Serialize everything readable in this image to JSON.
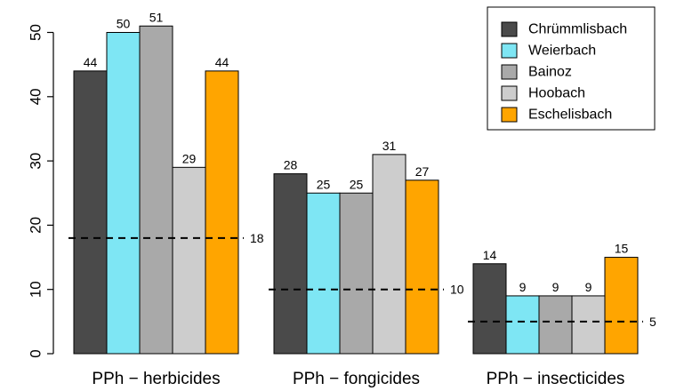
{
  "chart_data": {
    "type": "bar",
    "categories": [
      "PPh − herbicides",
      "PPh − fongicides",
      "PPh − insecticides"
    ],
    "series": [
      {
        "name": "Chrümmlisbach",
        "color": "#4a4a4a",
        "values": [
          44,
          28,
          14
        ]
      },
      {
        "name": "Weierbach",
        "color": "#7ee6f4",
        "values": [
          50,
          25,
          9
        ]
      },
      {
        "name": "Bainoz",
        "color": "#a9a9a9",
        "values": [
          51,
          25,
          9
        ]
      },
      {
        "name": "Hoobach",
        "color": "#cdcdcd",
        "values": [
          29,
          31,
          9
        ]
      },
      {
        "name": "Eschelisbach",
        "color": "#ffa500",
        "values": [
          44,
          27,
          15
        ]
      }
    ],
    "reference_lines": [
      18,
      10,
      5
    ],
    "ylim": [
      0,
      54
    ],
    "yticks": [
      0,
      10,
      20,
      30,
      40,
      50
    ],
    "title": "",
    "xlabel": "",
    "ylabel": "",
    "legend_position": "top-right",
    "grid": false
  }
}
